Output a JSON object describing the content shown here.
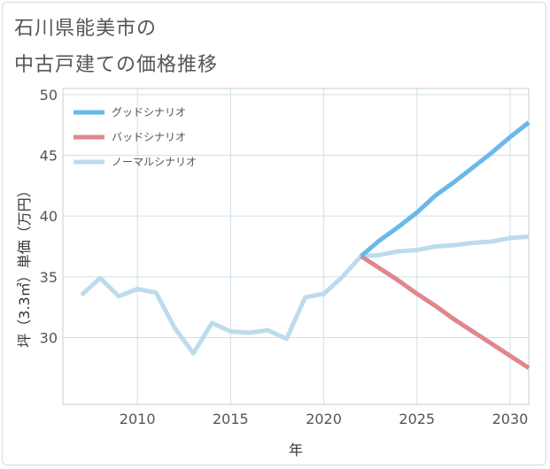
{
  "title": {
    "line1": "石川県能美市の",
    "line2": "中古戸建ての価格推移"
  },
  "chart_data": {
    "type": "line",
    "xlabel": "年",
    "ylabel": "坪（3.3㎡）単価（万円）",
    "xlim": [
      2006,
      2031
    ],
    "ylim": [
      24.5,
      50.5
    ],
    "xticks": [
      2010,
      2015,
      2020,
      2025,
      2030
    ],
    "yticks": [
      30,
      35,
      40,
      45,
      50
    ],
    "xtick_labels": [
      "2010",
      "2015",
      "2020",
      "2025",
      "2030"
    ],
    "ytick_labels": [
      "30",
      "35",
      "40",
      "45",
      "50"
    ],
    "grid": true,
    "legend_position": "top-left",
    "series": [
      {
        "name": "グッドシナリオ",
        "color": "#6bb8ea",
        "x": [
          2022,
          2023,
          2024,
          2025,
          2026,
          2027,
          2028,
          2029,
          2030,
          2031
        ],
        "y": [
          36.7,
          38.0,
          39.1,
          40.3,
          41.7,
          42.8,
          44.0,
          45.2,
          46.5,
          47.7
        ]
      },
      {
        "name": "バッドシナリオ",
        "color": "#e0868f",
        "x": [
          2022,
          2023,
          2024,
          2025,
          2026,
          2027,
          2028,
          2029,
          2030,
          2031
        ],
        "y": [
          36.7,
          35.7,
          34.7,
          33.6,
          32.6,
          31.5,
          30.5,
          29.5,
          28.5,
          27.5
        ]
      },
      {
        "name": "ノーマルシナリオ",
        "color": "#bcdcec",
        "x": [
          2007,
          2008,
          2009,
          2010,
          2011,
          2012,
          2013,
          2014,
          2015,
          2016,
          2017,
          2018,
          2019,
          2020,
          2021,
          2022,
          2023,
          2024,
          2025,
          2026,
          2027,
          2028,
          2029,
          2030,
          2031
        ],
        "y": [
          33.5,
          34.9,
          33.4,
          34.0,
          33.7,
          30.8,
          28.7,
          31.2,
          30.5,
          30.4,
          30.6,
          29.9,
          33.3,
          33.6,
          35.0,
          36.7,
          36.8,
          37.1,
          37.2,
          37.5,
          37.6,
          37.8,
          37.9,
          38.2,
          38.3
        ]
      }
    ]
  }
}
